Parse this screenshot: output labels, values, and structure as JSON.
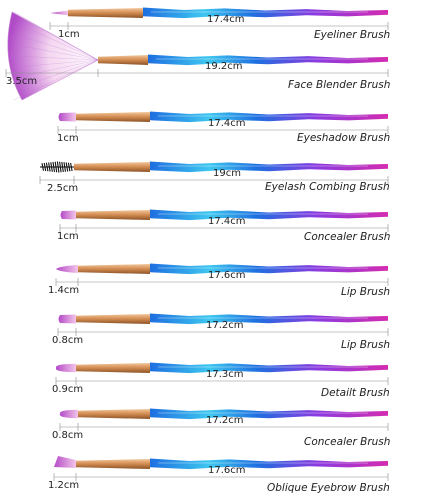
{
  "colors": {
    "handle_blue": "#1e6fe0",
    "handle_cyan": "#3ec7f0",
    "handle_purple": "#8a3be0",
    "handle_magenta": "#d42cb0",
    "ferrule_gold": "#d08a4f",
    "bristle_purple": "#b44ac8",
    "bristle_pink": "#f2c6e8",
    "measure_line": "#8a8a8a"
  },
  "brushes": [
    {
      "name": "Eyeliner Brush",
      "tip_size": "1cm",
      "length": "17.4cm",
      "tip": "fine"
    },
    {
      "name": "Face Blender Brush",
      "tip_size": "3.5cm",
      "length": "19.2cm",
      "tip": "fan"
    },
    {
      "name": "Eyeshadow Brush",
      "tip_size": "1cm",
      "length": "17.4cm",
      "tip": "flat"
    },
    {
      "name": "Eyelash Combing Brush",
      "tip_size": "2.5cm",
      "length": "19cm",
      "tip": "spoolie"
    },
    {
      "name": "Concealer Brush",
      "tip_size": "1cm",
      "length": "17.4cm",
      "tip": "flat"
    },
    {
      "name": "Lip Brush",
      "tip_size": "1.4cm",
      "length": "17.6cm",
      "tip": "pointed"
    },
    {
      "name": "Lip Brush",
      "tip_size": "0.8cm",
      "length": "17.2cm",
      "tip": "flat"
    },
    {
      "name": "Detailt Brush",
      "tip_size": "0.9cm",
      "length": "17.3cm",
      "tip": "round"
    },
    {
      "name": "Concealer Brush",
      "tip_size": "0.8cm",
      "length": "17.2cm",
      "tip": "round"
    },
    {
      "name": "Oblique Eyebrow Brush",
      "tip_size": "1.2cm",
      "length": "17.6cm",
      "tip": "angled"
    }
  ]
}
